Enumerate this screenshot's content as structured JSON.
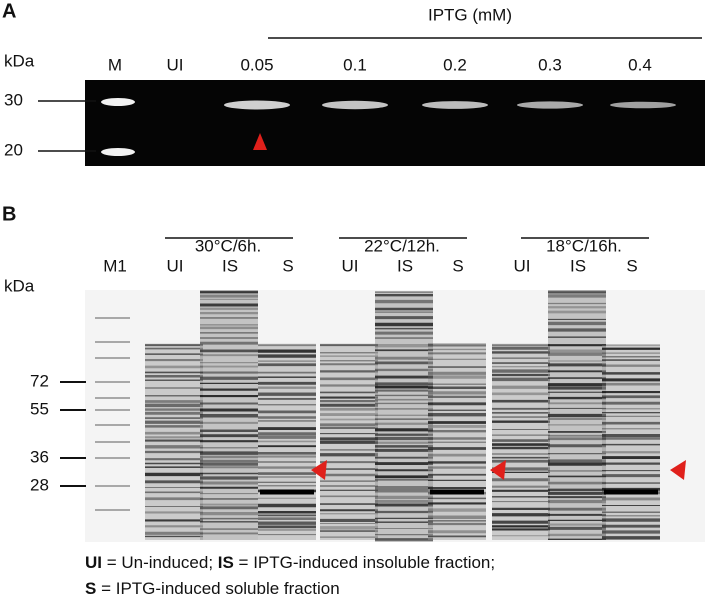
{
  "panel_a": {
    "label": "A",
    "header": "IPTG (mM)",
    "unit": "kDa",
    "lanes": [
      "M",
      "UI",
      "0.05",
      "0.1",
      "0.2",
      "0.3",
      "0.4"
    ],
    "markers": [
      30,
      20
    ]
  },
  "panel_b": {
    "label": "B",
    "unit": "kDa",
    "marker_lane": "M1",
    "groups": [
      {
        "title": "30°C/6h.",
        "lanes": [
          "UI",
          "IS",
          "S"
        ]
      },
      {
        "title": "22°C/12h.",
        "lanes": [
          "UI",
          "IS",
          "S"
        ]
      },
      {
        "title": "18°C/16h.",
        "lanes": [
          "UI",
          "IS",
          "S"
        ]
      }
    ],
    "markers": [
      72,
      55,
      36,
      28
    ]
  },
  "legend": {
    "lines": [
      [
        {
          "term": "UI",
          "text": " = Un-induced; "
        },
        {
          "term": "IS",
          "text": " = IPTG-induced insoluble fraction;"
        }
      ],
      [
        {
          "term": "S",
          "text": " = IPTG-induced soluble fraction"
        }
      ]
    ]
  }
}
